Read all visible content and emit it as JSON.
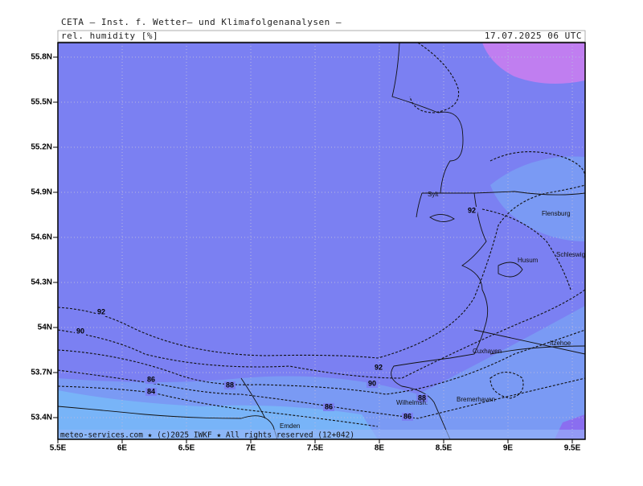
{
  "header": {
    "title": "CETA — Inst. f. Wetter— und Klimafolgenanalysen —",
    "field": "rel. humidity [%]",
    "valid_time": "17.07.2025 06 UTC"
  },
  "axes": {
    "lat_ticks": [
      {
        "value": 55.8,
        "label": "55.8N"
      },
      {
        "value": 55.5,
        "label": "55.5N"
      },
      {
        "value": 55.2,
        "label": "55.2N"
      },
      {
        "value": 54.9,
        "label": "54.9N"
      },
      {
        "value": 54.6,
        "label": "54.6N"
      },
      {
        "value": 54.3,
        "label": "54.3N"
      },
      {
        "value": 54,
        "label": "54N"
      },
      {
        "value": 53.7,
        "label": "53.7N"
      },
      {
        "value": 53.4,
        "label": "53.4N"
      }
    ],
    "lon_ticks": [
      {
        "value": 5.5,
        "label": "5.5E"
      },
      {
        "value": 6,
        "label": "6E"
      },
      {
        "value": 6.5,
        "label": "6.5E"
      },
      {
        "value": 7,
        "label": "7E"
      },
      {
        "value": 7.5,
        "label": "7.5E"
      },
      {
        "value": 8,
        "label": "8E"
      },
      {
        "value": 8.5,
        "label": "8.5E"
      },
      {
        "value": 9,
        "label": "9E"
      },
      {
        "value": 9.5,
        "label": "9.5E"
      }
    ]
  },
  "contour_labels": [
    92,
    90,
    86,
    84,
    88,
    92,
    90,
    88,
    86,
    86,
    92
  ],
  "cities": [
    "Sylt",
    "Flensburg",
    "Husum",
    "Schleswig",
    "Itzehoe",
    "Cuxhaven",
    "Bremerhaven",
    "Wilhelmsh.",
    "Emden"
  ],
  "footer": "meteo-services.com ★ (c)2025 IWKF ★ All rights reserved (12+042)"
}
